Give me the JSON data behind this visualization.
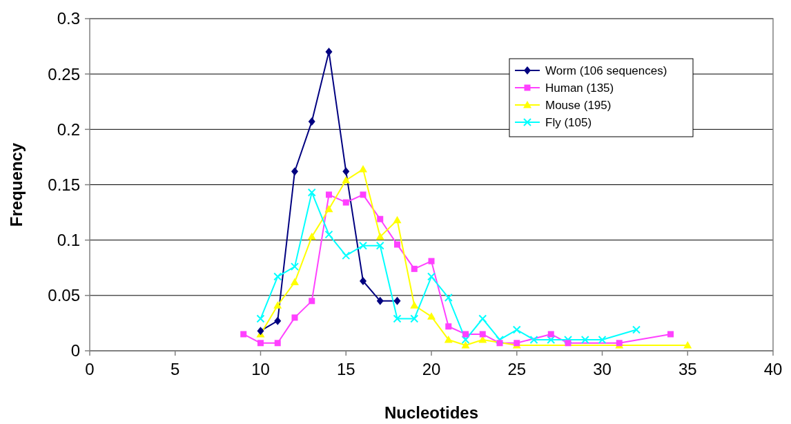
{
  "chart_data": {
    "type": "line",
    "xlabel": "Nucleotides",
    "ylabel": "Frequency",
    "xlim": [
      0,
      40
    ],
    "xticks": [
      0,
      5,
      10,
      15,
      20,
      25,
      30,
      35,
      40
    ],
    "ylim": [
      0,
      0.3
    ],
    "yticks": [
      0,
      0.05,
      0.1,
      0.15,
      0.2,
      0.25,
      0.3
    ],
    "grid": "y",
    "legend": "top right",
    "series": [
      {
        "name": "Worm (106 sequences)",
        "color": "#000080",
        "marker": "diamond",
        "x": [
          10,
          11,
          12,
          13,
          14,
          15,
          16,
          17,
          18
        ],
        "values": [
          0.018,
          0.027,
          0.162,
          0.207,
          0.27,
          0.162,
          0.063,
          0.045,
          0.045
        ]
      },
      {
        "name": "Human (135)",
        "color": "#ff40ff",
        "marker": "square",
        "x": [
          9,
          10,
          11,
          12,
          13,
          14,
          15,
          16,
          17,
          18,
          19,
          20,
          21,
          22,
          23,
          24,
          25,
          27,
          28,
          31,
          34
        ],
        "values": [
          0.015,
          0.007,
          0.007,
          0.03,
          0.045,
          0.141,
          0.134,
          0.141,
          0.119,
          0.096,
          0.074,
          0.081,
          0.022,
          0.015,
          0.015,
          0.007,
          0.007,
          0.015,
          0.007,
          0.007,
          0.015
        ]
      },
      {
        "name": "Mouse (195)",
        "color": "#ffff00",
        "marker": "triangle",
        "x": [
          10,
          11,
          12,
          13,
          14,
          15,
          16,
          17,
          18,
          19,
          20,
          21,
          22,
          23,
          25,
          31,
          35
        ],
        "values": [
          0.015,
          0.041,
          0.062,
          0.103,
          0.128,
          0.154,
          0.164,
          0.103,
          0.118,
          0.041,
          0.031,
          0.01,
          0.005,
          0.01,
          0.005,
          0.005,
          0.005
        ]
      },
      {
        "name": "Fly (105)",
        "color": "#00ffff",
        "marker": "cross",
        "x": [
          10,
          11,
          12,
          13,
          14,
          15,
          16,
          17,
          18,
          19,
          20,
          21,
          22,
          23,
          24,
          25,
          26,
          27,
          28,
          29,
          30,
          32
        ],
        "values": [
          0.029,
          0.067,
          0.076,
          0.143,
          0.105,
          0.086,
          0.095,
          0.095,
          0.029,
          0.029,
          0.067,
          0.048,
          0.01,
          0.029,
          0.01,
          0.019,
          0.01,
          0.01,
          0.01,
          0.01,
          0.01,
          0.019
        ]
      }
    ]
  }
}
